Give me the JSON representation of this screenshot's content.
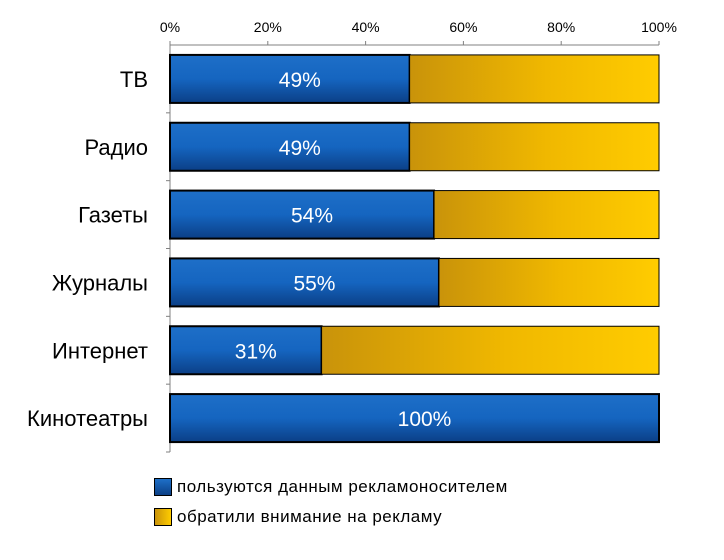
{
  "chart_data": {
    "type": "bar",
    "orientation": "horizontal",
    "stacked": true,
    "categories": [
      "ТВ",
      "Радио",
      "Газеты",
      "Журналы",
      "Интернет",
      "Кинотеатры"
    ],
    "series": [
      {
        "name": "пользуются данным рекламоносителем",
        "values": [
          49,
          49,
          54,
          55,
          31,
          100
        ],
        "color": "#1565c0",
        "data_labels": [
          "49%",
          "49%",
          "54%",
          "55%",
          "31%",
          "100%"
        ]
      },
      {
        "name": "обратили внимание на рекламу",
        "values": [
          51,
          51,
          46,
          45,
          69,
          0
        ],
        "color": "#f5c000"
      }
    ],
    "x_ticks": [
      "0%",
      "20%",
      "40%",
      "60%",
      "80%",
      "100%"
    ],
    "xlim": [
      0,
      100
    ],
    "x_axis_position": "top",
    "grid": false,
    "legend_position": "bottom-left"
  }
}
